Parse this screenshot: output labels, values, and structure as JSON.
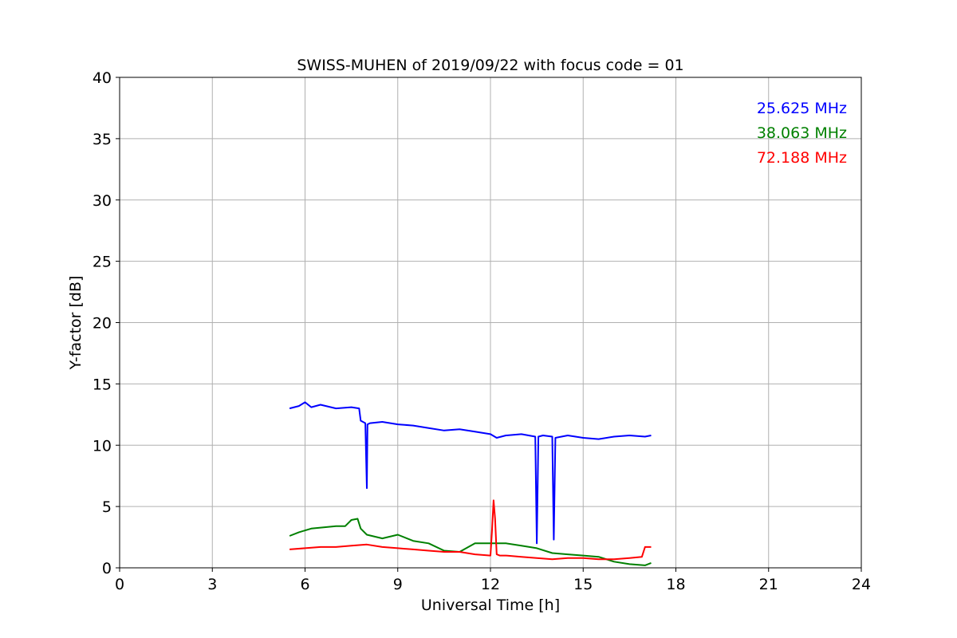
{
  "chart_data": {
    "type": "line",
    "title": "SWISS-MUHEN of 2019/09/22 with focus code = 01",
    "xlabel": "Universal Time [h]",
    "ylabel": "Y-factor [dB]",
    "xlim": [
      0,
      24
    ],
    "ylim": [
      0,
      40
    ],
    "x_ticks": [
      0,
      3,
      6,
      9,
      12,
      15,
      18,
      21,
      24
    ],
    "y_ticks": [
      0,
      5,
      10,
      15,
      20,
      25,
      30,
      35,
      40
    ],
    "grid": true,
    "legend_placement": "top-right",
    "series": [
      {
        "name": "25.625 MHz",
        "color": "#0000ff",
        "x": [
          5.5,
          5.8,
          6.0,
          6.2,
          6.5,
          7.0,
          7.5,
          7.75,
          7.8,
          7.95,
          8.0,
          8.02,
          8.1,
          8.5,
          9.0,
          9.5,
          10.0,
          10.5,
          11.0,
          11.5,
          12.0,
          12.2,
          12.5,
          13.0,
          13.45,
          13.5,
          13.55,
          13.7,
          14.0,
          14.05,
          14.1,
          14.5,
          15.0,
          15.5,
          16.0,
          16.5,
          17.0,
          17.2
        ],
        "y": [
          13.0,
          13.2,
          13.5,
          13.1,
          13.3,
          13.0,
          13.1,
          13.0,
          12.0,
          11.8,
          6.5,
          11.7,
          11.8,
          11.9,
          11.7,
          11.6,
          11.4,
          11.2,
          11.3,
          11.1,
          10.9,
          10.6,
          10.8,
          10.9,
          10.7,
          2.0,
          10.7,
          10.8,
          10.7,
          2.3,
          10.6,
          10.8,
          10.6,
          10.5,
          10.7,
          10.8,
          10.7,
          10.8
        ]
      },
      {
        "name": "38.063 MHz",
        "color": "#008000",
        "x": [
          5.5,
          5.8,
          6.2,
          6.6,
          7.0,
          7.3,
          7.5,
          7.7,
          7.8,
          8.0,
          8.5,
          9.0,
          9.5,
          10.0,
          10.5,
          11.0,
          11.5,
          12.0,
          12.5,
          13.0,
          13.5,
          14.0,
          14.5,
          15.0,
          15.5,
          16.0,
          16.5,
          17.0,
          17.2
        ],
        "y": [
          2.6,
          2.9,
          3.2,
          3.3,
          3.4,
          3.4,
          3.9,
          4.0,
          3.2,
          2.7,
          2.4,
          2.7,
          2.2,
          2.0,
          1.4,
          1.3,
          2.0,
          2.0,
          2.0,
          1.8,
          1.6,
          1.2,
          1.1,
          1.0,
          0.9,
          0.5,
          0.3,
          0.2,
          0.4
        ]
      },
      {
        "name": "72.188 MHz",
        "color": "#ff0000",
        "x": [
          5.5,
          6.0,
          6.5,
          7.0,
          7.5,
          8.0,
          8.5,
          9.0,
          9.5,
          10.0,
          10.5,
          11.0,
          11.5,
          12.0,
          12.05,
          12.1,
          12.15,
          12.2,
          12.3,
          12.5,
          13.0,
          13.5,
          14.0,
          14.5,
          15.0,
          15.5,
          16.0,
          16.5,
          16.9,
          17.0,
          17.2
        ],
        "y": [
          1.5,
          1.6,
          1.7,
          1.7,
          1.8,
          1.9,
          1.7,
          1.6,
          1.5,
          1.4,
          1.3,
          1.3,
          1.1,
          1.0,
          3.0,
          5.5,
          4.0,
          1.1,
          1.0,
          1.0,
          0.9,
          0.8,
          0.7,
          0.8,
          0.8,
          0.7,
          0.7,
          0.8,
          0.9,
          1.7,
          1.7
        ]
      }
    ]
  }
}
